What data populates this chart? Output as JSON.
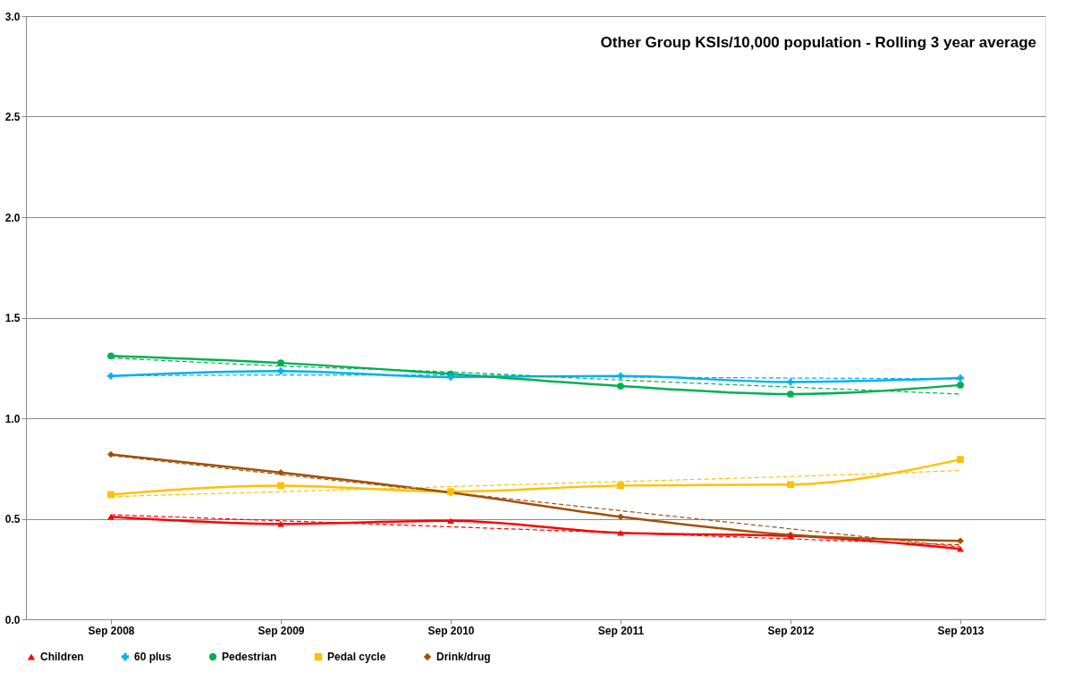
{
  "chart_data": {
    "type": "line",
    "title": "Other Group KSIs/10,000 population - Rolling 3 year average",
    "categories": [
      "Sep 2008",
      "Sep 2009",
      "Sep 2010",
      "Sep 2011",
      "Sep 2012",
      "Sep 2013"
    ],
    "series": [
      {
        "name": "Children",
        "color": "#ff0000",
        "marker": "triangle",
        "values": [
          0.51,
          0.475,
          0.49,
          0.43,
          0.415,
          0.35
        ]
      },
      {
        "name": "60 plus",
        "color": "#00b0f0",
        "marker": "cross",
        "values": [
          1.21,
          1.235,
          1.205,
          1.21,
          1.18,
          1.2
        ]
      },
      {
        "name": "Pedestrian",
        "color": "#00b050",
        "marker": "circle",
        "values": [
          1.31,
          1.275,
          1.22,
          1.16,
          1.12,
          1.165
        ]
      },
      {
        "name": "Pedal cycle",
        "color": "#ffc000",
        "marker": "square",
        "values": [
          0.62,
          0.665,
          0.635,
          0.665,
          0.67,
          0.795
        ]
      },
      {
        "name": "Drink/drug",
        "color": "#a0500a",
        "marker": "diamond",
        "values": [
          0.82,
          0.73,
          0.63,
          0.51,
          0.42,
          0.39
        ]
      },
      {
        "type": "line",
        "color": "#ff0000",
        "line_style": "dashed",
        "marker": "none",
        "values": [
          0.52,
          0.49,
          0.46,
          0.43,
          0.4,
          0.37
        ]
      },
      {
        "type": "line",
        "color": "#00b0f0",
        "line_style": "dashed",
        "marker": "none",
        "values": [
          1.21,
          1.215,
          1.215,
          1.205,
          1.2,
          1.195
        ]
      },
      {
        "type": "line",
        "color": "#00b050",
        "line_style": "dashed",
        "marker": "none",
        "values": [
          1.3,
          1.26,
          1.23,
          1.19,
          1.155,
          1.12
        ]
      },
      {
        "type": "line",
        "color": "#ffc000",
        "line_style": "dashed",
        "marker": "none",
        "values": [
          0.61,
          0.635,
          0.66,
          0.685,
          0.71,
          0.74
        ]
      },
      {
        "type": "line",
        "color": "#a0500a",
        "line_style": "dashed",
        "marker": "none",
        "values": [
          0.815,
          0.72,
          0.63,
          0.54,
          0.45,
          0.36
        ]
      }
    ],
    "ylim": [
      0,
      3
    ],
    "yticks": [
      {
        "value": 0,
        "label": "0.0"
      },
      {
        "value": 0.5,
        "label": "0.5"
      },
      {
        "value": 1,
        "label": "1.0"
      },
      {
        "value": 1.5,
        "label": "1.5"
      },
      {
        "value": 2,
        "label": "2.0"
      },
      {
        "value": 2.5,
        "label": "2.5"
      },
      {
        "value": 3,
        "label": "3.0"
      }
    ],
    "grid": "y",
    "legend": "bottom",
    "line_style": "solid"
  }
}
